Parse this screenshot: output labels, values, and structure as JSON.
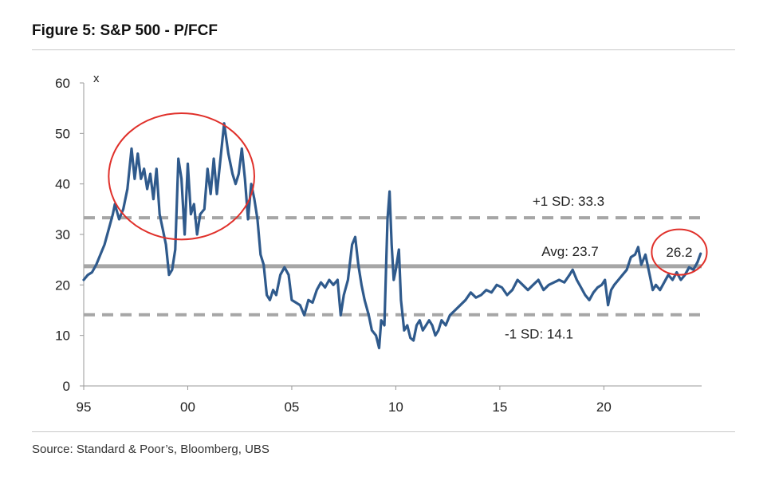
{
  "title": "Figure 5: S&P 500 - P/FCF",
  "source": "Source: Standard & Poor’s, Bloomberg, UBS",
  "chart_data": {
    "type": "line",
    "ylabel": "x",
    "ylim": [
      0,
      60
    ],
    "xlim": [
      1995,
      2024.7
    ],
    "yticks": [
      0,
      10,
      20,
      30,
      40,
      50,
      60
    ],
    "xticks": [
      {
        "value": 1995,
        "label": "95"
      },
      {
        "value": 2000,
        "label": "00"
      },
      {
        "value": 2005,
        "label": "05"
      },
      {
        "value": 2010,
        "label": "10"
      },
      {
        "value": 2015,
        "label": "15"
      },
      {
        "value": 2020,
        "label": "20"
      }
    ],
    "series": [
      {
        "color": "#2f5a8c",
        "points": [
          [
            1995.0,
            21
          ],
          [
            1995.2,
            22
          ],
          [
            1995.4,
            22.5
          ],
          [
            1995.6,
            24
          ],
          [
            1995.8,
            26
          ],
          [
            1996.0,
            28
          ],
          [
            1996.2,
            31
          ],
          [
            1996.4,
            34
          ],
          [
            1996.5,
            36
          ],
          [
            1996.7,
            33
          ],
          [
            1996.9,
            35
          ],
          [
            1997.1,
            39
          ],
          [
            1997.3,
            47
          ],
          [
            1997.45,
            41
          ],
          [
            1997.6,
            46
          ],
          [
            1997.75,
            41
          ],
          [
            1997.9,
            43
          ],
          [
            1998.05,
            39
          ],
          [
            1998.2,
            42
          ],
          [
            1998.35,
            37
          ],
          [
            1998.5,
            43
          ],
          [
            1998.65,
            34
          ],
          [
            1998.8,
            31
          ],
          [
            1998.95,
            28
          ],
          [
            1999.1,
            22
          ],
          [
            1999.25,
            23
          ],
          [
            1999.4,
            27
          ],
          [
            1999.55,
            45
          ],
          [
            1999.7,
            41
          ],
          [
            1999.85,
            30
          ],
          [
            2000.0,
            44
          ],
          [
            2000.15,
            34
          ],
          [
            2000.3,
            36
          ],
          [
            2000.45,
            30
          ],
          [
            2000.6,
            34
          ],
          [
            2000.8,
            35
          ],
          [
            2000.95,
            43
          ],
          [
            2001.1,
            38
          ],
          [
            2001.25,
            45
          ],
          [
            2001.4,
            38
          ],
          [
            2001.55,
            44
          ],
          [
            2001.75,
            52
          ],
          [
            2001.95,
            46
          ],
          [
            2002.15,
            42
          ],
          [
            2002.3,
            40
          ],
          [
            2002.45,
            42
          ],
          [
            2002.6,
            47
          ],
          [
            2002.75,
            41
          ],
          [
            2002.9,
            33
          ],
          [
            2003.05,
            40
          ],
          [
            2003.2,
            37
          ],
          [
            2003.35,
            33
          ],
          [
            2003.5,
            26
          ],
          [
            2003.65,
            24
          ],
          [
            2003.8,
            18
          ],
          [
            2003.95,
            17
          ],
          [
            2004.1,
            19
          ],
          [
            2004.25,
            18
          ],
          [
            2004.45,
            22
          ],
          [
            2004.65,
            23.5
          ],
          [
            2004.85,
            22
          ],
          [
            2005.0,
            17
          ],
          [
            2005.2,
            16.5
          ],
          [
            2005.4,
            16
          ],
          [
            2005.6,
            14
          ],
          [
            2005.8,
            17
          ],
          [
            2006.0,
            16.5
          ],
          [
            2006.2,
            19
          ],
          [
            2006.4,
            20.5
          ],
          [
            2006.6,
            19.5
          ],
          [
            2006.8,
            21
          ],
          [
            2007.0,
            20
          ],
          [
            2007.2,
            21
          ],
          [
            2007.35,
            14
          ],
          [
            2007.5,
            18
          ],
          [
            2007.7,
            21
          ],
          [
            2007.9,
            28
          ],
          [
            2008.05,
            29.5
          ],
          [
            2008.2,
            24
          ],
          [
            2008.35,
            20
          ],
          [
            2008.5,
            17
          ],
          [
            2008.7,
            14
          ],
          [
            2008.85,
            11
          ],
          [
            2009.05,
            10
          ],
          [
            2009.2,
            7.5
          ],
          [
            2009.3,
            13
          ],
          [
            2009.45,
            12
          ],
          [
            2009.6,
            33
          ],
          [
            2009.7,
            38.5
          ],
          [
            2009.8,
            28
          ],
          [
            2009.9,
            21
          ],
          [
            2010.0,
            23
          ],
          [
            2010.15,
            27
          ],
          [
            2010.25,
            17
          ],
          [
            2010.4,
            11
          ],
          [
            2010.55,
            12
          ],
          [
            2010.7,
            9.5
          ],
          [
            2010.85,
            9
          ],
          [
            2011.0,
            12
          ],
          [
            2011.15,
            13
          ],
          [
            2011.3,
            11
          ],
          [
            2011.45,
            12
          ],
          [
            2011.6,
            13
          ],
          [
            2011.75,
            12
          ],
          [
            2011.9,
            10
          ],
          [
            2012.05,
            11
          ],
          [
            2012.2,
            13
          ],
          [
            2012.4,
            12
          ],
          [
            2012.6,
            14
          ],
          [
            2012.85,
            15
          ],
          [
            2013.1,
            16
          ],
          [
            2013.35,
            17
          ],
          [
            2013.6,
            18.5
          ],
          [
            2013.85,
            17.5
          ],
          [
            2014.1,
            18
          ],
          [
            2014.35,
            19
          ],
          [
            2014.6,
            18.5
          ],
          [
            2014.85,
            20
          ],
          [
            2015.1,
            19.5
          ],
          [
            2015.35,
            18
          ],
          [
            2015.6,
            19
          ],
          [
            2015.85,
            21
          ],
          [
            2016.1,
            20
          ],
          [
            2016.35,
            19
          ],
          [
            2016.6,
            20
          ],
          [
            2016.85,
            21
          ],
          [
            2017.1,
            19
          ],
          [
            2017.35,
            20
          ],
          [
            2017.6,
            20.5
          ],
          [
            2017.85,
            21
          ],
          [
            2018.1,
            20.5
          ],
          [
            2018.35,
            22
          ],
          [
            2018.5,
            23
          ],
          [
            2018.7,
            21
          ],
          [
            2018.9,
            19.5
          ],
          [
            2019.1,
            18
          ],
          [
            2019.3,
            17
          ],
          [
            2019.5,
            18.5
          ],
          [
            2019.7,
            19.5
          ],
          [
            2019.9,
            20
          ],
          [
            2020.05,
            21
          ],
          [
            2020.2,
            16
          ],
          [
            2020.35,
            19
          ],
          [
            2020.5,
            20
          ],
          [
            2020.7,
            21
          ],
          [
            2020.9,
            22
          ],
          [
            2021.1,
            23
          ],
          [
            2021.3,
            25.5
          ],
          [
            2021.5,
            26
          ],
          [
            2021.65,
            27.5
          ],
          [
            2021.8,
            24
          ],
          [
            2022.0,
            26
          ],
          [
            2022.2,
            22
          ],
          [
            2022.35,
            19
          ],
          [
            2022.5,
            20
          ],
          [
            2022.7,
            19
          ],
          [
            2022.9,
            20.5
          ],
          [
            2023.1,
            22
          ],
          [
            2023.3,
            21
          ],
          [
            2023.5,
            22.5
          ],
          [
            2023.7,
            21
          ],
          [
            2023.9,
            22
          ],
          [
            2024.1,
            23.5
          ],
          [
            2024.3,
            23
          ],
          [
            2024.5,
            24.5
          ],
          [
            2024.65,
            26.2
          ]
        ]
      }
    ],
    "reference_lines": [
      {
        "value": 33.3,
        "label": "+1 SD: 33.3",
        "style": "dashed",
        "color": "#a6a6a6"
      },
      {
        "value": 23.7,
        "label": "Avg: 23.7",
        "style": "solid",
        "color": "#a6a6a6"
      },
      {
        "value": 14.1,
        "label": "-1 SD: 14.1",
        "style": "dashed",
        "color": "#a6a6a6"
      }
    ],
    "annotations": [
      {
        "type": "circle",
        "label": "",
        "color": "#e0302a",
        "x_range": [
          1996.2,
          2003.2
        ],
        "y_range": [
          29,
          54
        ]
      },
      {
        "type": "circle",
        "label": "26.2",
        "color": "#e0302a",
        "x_range": [
          2022.3,
          2024.95
        ],
        "y_range": [
          22,
          31
        ]
      }
    ],
    "grid": false
  }
}
